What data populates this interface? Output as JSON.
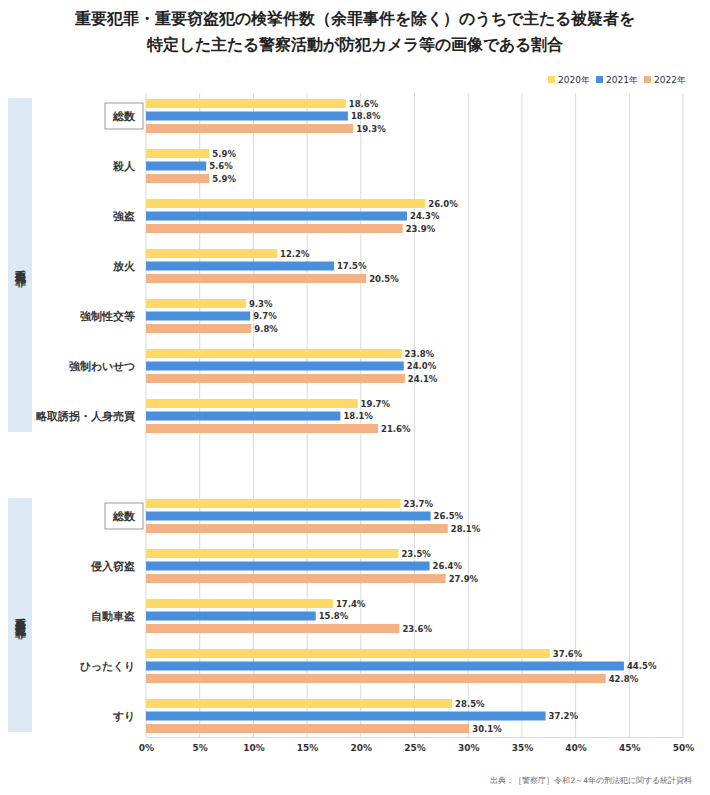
{
  "chart_data": {
    "type": "bar",
    "orientation": "horizontal",
    "title": "重要犯罪・重要窃盗犯の検挙件数（余罪事件を除く）のうちで主たる被疑者を\n特定した主たる警察活動が防犯カメラ等の画像である割合",
    "source": "出典：［警察庁］令和2～4年の刑法犯に関する統計資料",
    "categories": [
      "総数",
      "殺人",
      "強盗",
      "放火",
      "強制性交等",
      "強制わいせつ",
      "略取誘拐・人身売買",
      "総数",
      "侵入窃盗",
      "自動車盗",
      "ひったくり",
      "すり"
    ],
    "groups": [
      {
        "label": "重要犯罪",
        "size": 7
      },
      {
        "label": "重要窃盗犯罪",
        "size": 5
      }
    ],
    "series": [
      {
        "name": "2020年",
        "color": "#ffd966",
        "values": [
          18.6,
          5.9,
          26.0,
          12.2,
          9.3,
          23.8,
          19.7,
          23.7,
          23.5,
          17.4,
          37.6,
          28.5
        ],
        "value_labels": [
          "18.6%",
          "5.9%",
          "26.0%",
          "12.2%",
          "9.3%",
          "23.8%",
          "19.7%",
          "23.7%",
          "23.5%",
          "17.4%",
          "37.6%",
          "28.5%"
        ]
      },
      {
        "name": "2021年",
        "color": "#4a8fdb",
        "values": [
          18.8,
          5.6,
          24.3,
          17.5,
          9.7,
          24.0,
          18.1,
          26.5,
          26.4,
          15.8,
          44.5,
          37.2
        ],
        "value_labels": [
          "18.8%",
          "5.6%",
          "24.3%",
          "17.5%",
          "9.7%",
          "24.0%",
          "18.1%",
          "26.5%",
          "26.4%",
          "15.8%",
          "44.5%",
          "37.2%"
        ]
      },
      {
        "name": "2022年",
        "color": "#f4b183",
        "values": [
          19.3,
          5.9,
          23.9,
          20.5,
          9.8,
          24.1,
          21.6,
          28.1,
          27.9,
          23.6,
          42.8,
          30.1
        ],
        "value_labels": [
          "19.3%",
          "5.9%",
          "23.9%",
          "20.5%",
          "9.8%",
          "24.1%",
          "21.6%",
          "28.1%",
          "27.9%",
          "23.6%",
          "42.8%",
          "30.1%"
        ]
      }
    ],
    "xlim": [
      0,
      50
    ],
    "xticks": [
      {
        "value": 0,
        "label": "0%"
      },
      {
        "value": 5,
        "label": "5%"
      },
      {
        "value": 10,
        "label": "10%"
      },
      {
        "value": 15,
        "label": "15%"
      },
      {
        "value": 20,
        "label": "20%"
      },
      {
        "value": 25,
        "label": "25%"
      },
      {
        "value": 30,
        "label": "30%"
      },
      {
        "value": 35,
        "label": "35%"
      },
      {
        "value": 40,
        "label": "40%"
      },
      {
        "value": 45,
        "label": "45%"
      },
      {
        "value": 50,
        "label": "50%"
      }
    ],
    "grid": true,
    "data_labels": true,
    "legend": "top-right"
  }
}
